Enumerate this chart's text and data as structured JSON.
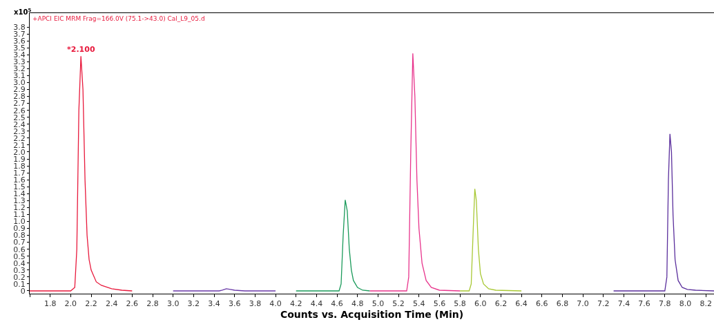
{
  "chart_data": {
    "type": "line",
    "title": "+APCI EIC MRM Frag=166.0V (75.1->43.0) Cal_L9_05.d",
    "xlabel": "Counts vs. Acquisition Time (Min)",
    "ylabel": "x10$^{5}$",
    "annotations": [
      {
        "text": "*2.100",
        "x": 2.1,
        "y": 3.38
      }
    ],
    "xlim": [
      1.6,
      8.28
    ],
    "ylim": [
      -0.04,
      4.0
    ],
    "xticks": [
      {
        "value": 1.6,
        "label": null
      },
      1.8,
      {
        "value": 2,
        "label": "2.0"
      },
      2.2,
      2.4,
      2.6,
      2.8,
      {
        "value": 3,
        "label": "3.0"
      },
      3.2,
      3.4,
      3.6,
      3.8,
      {
        "value": 4,
        "label": "4.0"
      },
      4.2,
      4.4,
      4.6,
      4.8,
      {
        "value": 5,
        "label": "5.0"
      },
      5.2,
      5.4,
      5.6,
      5.8,
      {
        "value": 6,
        "label": "6.0"
      },
      6.2,
      6.4,
      6.6,
      6.8,
      {
        "value": 7,
        "label": "7.0"
      },
      7.2,
      7.4,
      7.6,
      7.8,
      {
        "value": 8,
        "label": "8.0"
      },
      8.2
    ],
    "yticks": [
      0,
      0.1,
      0.2,
      0.3,
      0.4,
      0.5,
      0.6,
      0.7,
      0.8,
      0.9,
      {
        "value": 1,
        "label": "1.0"
      },
      1.1,
      1.2,
      1.3,
      1.4,
      1.5,
      1.6,
      1.7,
      1.8,
      1.9,
      {
        "value": 2,
        "label": "2.0"
      },
      2.1,
      2.2,
      2.3,
      2.4,
      2.5,
      2.6,
      2.7,
      2.8,
      2.9,
      {
        "value": 3,
        "label": "3.0"
      },
      3.1,
      3.2,
      3.3,
      3.4,
      3.5,
      3.6,
      3.7,
      3.8
    ],
    "grid": false,
    "marker": "none",
    "line_style": "solid",
    "series": [
      {
        "color": "#e8193c",
        "x": [
          1.6,
          2.0,
          2.04,
          2.06,
          2.08,
          2.1,
          2.12,
          2.14,
          2.16,
          2.18,
          2.2,
          2.25,
          2.3,
          2.4,
          2.5,
          2.6
        ],
        "values": [
          0,
          0,
          0.05,
          0.6,
          2.6,
          3.38,
          2.9,
          1.6,
          0.8,
          0.45,
          0.3,
          0.13,
          0.08,
          0.03,
          0.01,
          0
        ]
      },
      {
        "color": "#6a3aa8",
        "x": [
          3.0,
          3.45,
          3.48,
          3.52,
          3.56,
          3.6,
          3.7,
          4.0
        ],
        "values": [
          0,
          0,
          0.01,
          0.03,
          0.02,
          0.01,
          0,
          0
        ]
      },
      {
        "color": "#1a9a5a",
        "x": [
          4.2,
          4.62,
          4.64,
          4.66,
          4.68,
          4.7,
          4.72,
          4.74,
          4.76,
          4.8,
          4.85,
          4.92
        ],
        "values": [
          0,
          0,
          0.1,
          0.8,
          1.31,
          1.15,
          0.6,
          0.3,
          0.15,
          0.05,
          0.01,
          0
        ]
      },
      {
        "color": "#e8348c",
        "x": [
          4.92,
          5.28,
          5.3,
          5.32,
          5.34,
          5.36,
          5.38,
          5.4,
          5.43,
          5.47,
          5.52,
          5.6,
          5.8
        ],
        "values": [
          0,
          0,
          0.2,
          2.0,
          3.42,
          2.8,
          1.6,
          0.9,
          0.4,
          0.15,
          0.05,
          0.01,
          0
        ]
      },
      {
        "color": "#a8c834",
        "x": [
          5.8,
          5.89,
          5.91,
          5.93,
          5.945,
          5.96,
          5.98,
          6.0,
          6.03,
          6.08,
          6.15,
          6.4
        ],
        "values": [
          0,
          0,
          0.1,
          0.9,
          1.47,
          1.3,
          0.6,
          0.25,
          0.1,
          0.03,
          0.01,
          0
        ]
      },
      {
        "color": "#5a2e9c",
        "x": [
          7.3,
          7.8,
          7.82,
          7.835,
          7.85,
          7.865,
          7.88,
          7.9,
          7.93,
          7.97,
          8.02,
          8.1,
          8.28
        ],
        "values": [
          0,
          0,
          0.2,
          1.6,
          2.26,
          2.0,
          1.1,
          0.45,
          0.15,
          0.05,
          0.02,
          0.01,
          0
        ]
      }
    ]
  }
}
